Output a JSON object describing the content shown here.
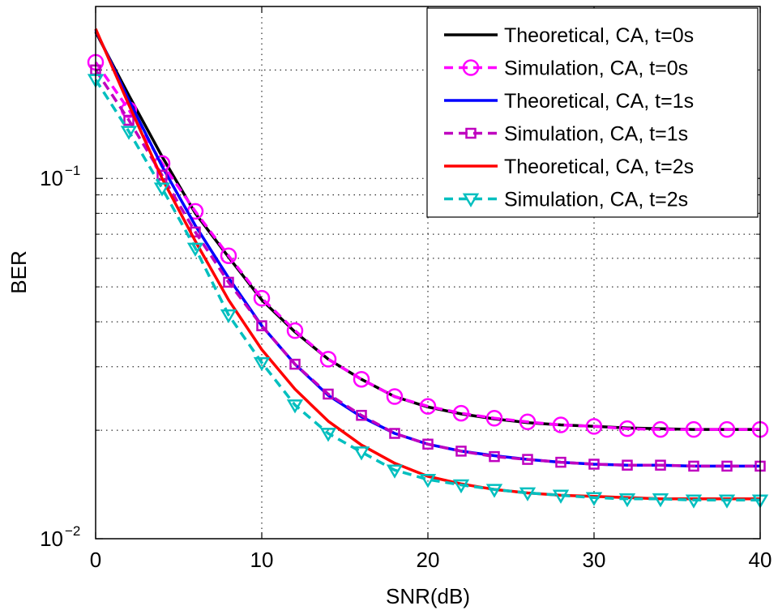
{
  "chart_data": {
    "type": "line",
    "xlabel": "SNR(dB)",
    "ylabel": "BER",
    "xlim": [
      0,
      40
    ],
    "ylim": [
      0.01,
      0.3
    ],
    "yscale": "log",
    "grid": true,
    "legend_position": "top-right",
    "x_ticks": [
      "0",
      "10",
      "20",
      "30",
      "40"
    ],
    "y_ticks": [
      {
        "base": "10",
        "exp": "−1",
        "value": 0.1
      },
      {
        "base": "10",
        "exp": "−2",
        "value": 0.01
      }
    ],
    "series": [
      {
        "name": "Theoretical, CA, t=0s",
        "color": "#000000",
        "dash": "solid",
        "marker": "none",
        "x": [
          0,
          2,
          4,
          6,
          8,
          10,
          12,
          14,
          16,
          18,
          20,
          22,
          24,
          26,
          28,
          30,
          32,
          34,
          36,
          38,
          40
        ],
        "y": [
          0.255,
          0.17,
          0.115,
          0.08,
          0.0605,
          0.046,
          0.0375,
          0.0315,
          0.0277,
          0.0248,
          0.0232,
          0.0222,
          0.0215,
          0.021,
          0.0207,
          0.0205,
          0.0203,
          0.0202,
          0.0201,
          0.0201,
          0.0201
        ]
      },
      {
        "name": "Simulation, CA, t=0s",
        "color": "#ff00ff",
        "dash": "dashed",
        "marker": "circle",
        "x": [
          0,
          2,
          4,
          6,
          8,
          10,
          12,
          14,
          16,
          18,
          20,
          22,
          24,
          26,
          28,
          30,
          32,
          34,
          36,
          38,
          40
        ],
        "y": [
          0.21,
          0.155,
          0.11,
          0.081,
          0.061,
          0.0465,
          0.0378,
          0.0315,
          0.0277,
          0.0248,
          0.0233,
          0.0223,
          0.0216,
          0.0211,
          0.0207,
          0.0205,
          0.0202,
          0.0201,
          0.0201,
          0.0201,
          0.0201
        ]
      },
      {
        "name": "Theoretical, CA, t=1s",
        "color": "#0000ff",
        "dash": "solid",
        "marker": "none",
        "x": [
          0,
          2,
          4,
          6,
          8,
          10,
          12,
          14,
          16,
          18,
          20,
          22,
          24,
          26,
          28,
          30,
          32,
          34,
          36,
          38,
          40
        ],
        "y": [
          0.258,
          0.165,
          0.108,
          0.074,
          0.053,
          0.039,
          0.0305,
          0.025,
          0.0218,
          0.0196,
          0.0183,
          0.0175,
          0.017,
          0.0166,
          0.0163,
          0.0161,
          0.016,
          0.016,
          0.0159,
          0.0159,
          0.0159
        ]
      },
      {
        "name": "Simulation, CA, t=1s",
        "color": "#bf00bf",
        "dash": "dashed",
        "marker": "square",
        "x": [
          0,
          2,
          4,
          6,
          8,
          10,
          12,
          14,
          16,
          18,
          20,
          22,
          24,
          26,
          28,
          30,
          32,
          34,
          36,
          38,
          40
        ],
        "y": [
          0.2,
          0.145,
          0.102,
          0.071,
          0.0515,
          0.039,
          0.0305,
          0.0252,
          0.022,
          0.0196,
          0.0183,
          0.0175,
          0.0169,
          0.0166,
          0.0163,
          0.0161,
          0.016,
          0.016,
          0.0159,
          0.0159,
          0.0159
        ]
      },
      {
        "name": "Theoretical, CA, t=2s",
        "color": "#ff0000",
        "dash": "solid",
        "marker": "none",
        "x": [
          0,
          2,
          4,
          6,
          8,
          10,
          12,
          14,
          16,
          18,
          20,
          22,
          24,
          26,
          28,
          30,
          32,
          34,
          36,
          38,
          40
        ],
        "y": [
          0.26,
          0.16,
          0.1,
          0.067,
          0.046,
          0.0335,
          0.026,
          0.0212,
          0.0182,
          0.0162,
          0.0149,
          0.0142,
          0.0137,
          0.0134,
          0.0132,
          0.0131,
          0.013,
          0.0129,
          0.0129,
          0.0129,
          0.0129
        ]
      },
      {
        "name": "Simulation, CA, t=2s",
        "color": "#00bfbf",
        "dash": "dashed",
        "marker": "triangle-down",
        "x": [
          0,
          2,
          4,
          6,
          8,
          10,
          12,
          14,
          16,
          18,
          20,
          22,
          24,
          26,
          28,
          30,
          32,
          34,
          36,
          38,
          40
        ],
        "y": [
          0.188,
          0.135,
          0.094,
          0.064,
          0.0418,
          0.0308,
          0.0235,
          0.0196,
          0.0174,
          0.0155,
          0.0146,
          0.0141,
          0.0137,
          0.0134,
          0.0132,
          0.013,
          0.0129,
          0.0129,
          0.0128,
          0.0128,
          0.0128
        ]
      }
    ]
  }
}
